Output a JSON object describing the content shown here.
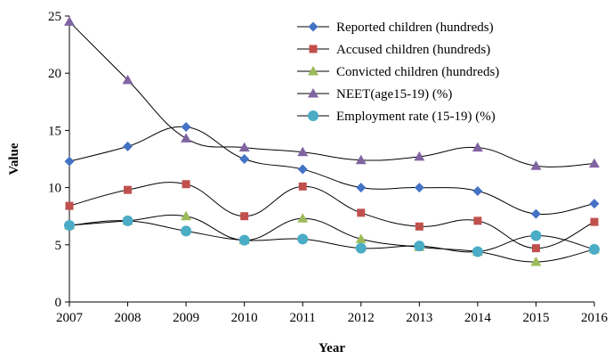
{
  "chart_data": {
    "type": "line",
    "xlabel": "Year",
    "ylabel": "Value",
    "x": [
      2007,
      2008,
      2009,
      2010,
      2011,
      2012,
      2013,
      2014,
      2015,
      2016
    ],
    "xlim": [
      2007,
      2016
    ],
    "ylim": [
      0,
      25
    ],
    "yticks": [
      0,
      5,
      10,
      15,
      20,
      25
    ],
    "grid": false,
    "smooth": true,
    "legend_position": "top-right",
    "series": [
      {
        "name": "Reported children (hundreds)",
        "marker": "diamond",
        "color": "#4472C4",
        "values": [
          12.3,
          13.6,
          15.3,
          12.5,
          11.6,
          10.0,
          10.0,
          9.7,
          7.7,
          8.6
        ]
      },
      {
        "name": "Accused children (hundreds)",
        "marker": "square",
        "color": "#C0504D",
        "values": [
          8.4,
          9.8,
          10.3,
          7.5,
          10.1,
          7.8,
          6.6,
          7.1,
          4.7,
          7.0
        ]
      },
      {
        "name": "Convicted children (hundreds)",
        "marker": "triangle",
        "color": "#9BBB59",
        "values": [
          6.7,
          7.1,
          7.5,
          5.4,
          7.3,
          5.5,
          4.8,
          4.4,
          3.5,
          4.6
        ]
      },
      {
        "name": "NEET(age15-19) (%)",
        "marker": "triangle",
        "color": "#8064A2",
        "values": [
          24.5,
          19.4,
          14.3,
          13.5,
          13.1,
          12.4,
          12.7,
          13.5,
          11.9,
          12.1
        ]
      },
      {
        "name": "Employment rate (15-19) (%)",
        "marker": "circle",
        "color": "#4BACC6",
        "values": [
          6.7,
          7.1,
          6.2,
          5.4,
          5.5,
          4.7,
          4.9,
          4.4,
          5.8,
          4.6
        ]
      }
    ]
  }
}
